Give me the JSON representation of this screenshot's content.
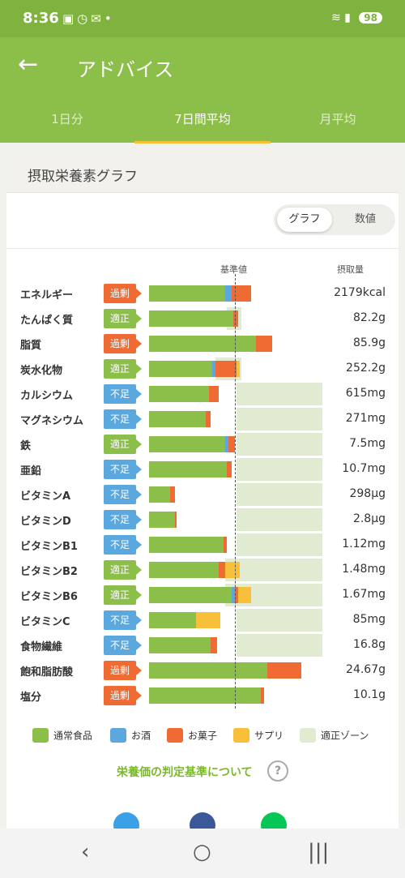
{
  "status": {
    "time": "8:36",
    "battery": "98"
  },
  "header": {
    "title": "アドバイス"
  },
  "tabs": [
    {
      "label": "1日分",
      "active": false
    },
    {
      "label": "7日間平均",
      "active": true
    },
    {
      "label": "月平均",
      "active": false
    }
  ],
  "card": {
    "title": "摂取栄養素グラフ"
  },
  "toggle": {
    "graph": "グラフ",
    "value": "数値"
  },
  "columns": {
    "reference": "基準値",
    "intake": "摂取量"
  },
  "status_labels": {
    "over": "過剰",
    "ok": "適正",
    "low": "不足"
  },
  "colors": {
    "food": "#8cbe4a",
    "alcohol": "#5ba8df",
    "sweets": "#f06a33",
    "supplement": "#f8c03a",
    "zone": "#e1ebd1"
  },
  "nutrients": [
    {
      "name": "エネルギー",
      "status": "過剰",
      "value": "2179kcal"
    },
    {
      "name": "たんぱく質",
      "status": "適正",
      "value": "82.2g"
    },
    {
      "name": "脂質",
      "status": "過剰",
      "value": "85.9g"
    },
    {
      "name": "炭水化物",
      "status": "適正",
      "value": "252.2g"
    },
    {
      "name": "カルシウム",
      "status": "不足",
      "value": "615mg"
    },
    {
      "name": "マグネシウム",
      "status": "不足",
      "value": "271mg"
    },
    {
      "name": "鉄",
      "status": "適正",
      "value": "7.5mg"
    },
    {
      "name": "亜鉛",
      "status": "不足",
      "value": "10.7mg"
    },
    {
      "name": "ビタミンA",
      "status": "不足",
      "value": "298μg"
    },
    {
      "name": "ビタミンD",
      "status": "不足",
      "value": "2.8μg"
    },
    {
      "name": "ビタミンB1",
      "status": "不足",
      "value": "1.12mg"
    },
    {
      "name": "ビタミンB2",
      "status": "適正",
      "value": "1.48mg"
    },
    {
      "name": "ビタミンB6",
      "status": "適正",
      "value": "1.67mg"
    },
    {
      "name": "ビタミンC",
      "status": "不足",
      "value": "85mg"
    },
    {
      "name": "食物繊維",
      "status": "不足",
      "value": "16.8g"
    },
    {
      "name": "飽和脂肪酸",
      "status": "過剰",
      "value": "24.67g"
    },
    {
      "name": "塩分",
      "status": "過剰",
      "value": "10.1g"
    }
  ],
  "legend": [
    {
      "label": "通常食品",
      "color": "#8cbe4a"
    },
    {
      "label": "お酒",
      "color": "#5ba8df"
    },
    {
      "label": "お菓子",
      "color": "#f06a33"
    },
    {
      "label": "サプリ",
      "color": "#f8c03a"
    },
    {
      "label": "適正ゾーン",
      "color": "#e1ebd1"
    }
  ],
  "criteria_link": "栄養価の判定基準について",
  "share_icons": [
    "twitter-icon",
    "facebook-icon",
    "line-icon"
  ]
}
